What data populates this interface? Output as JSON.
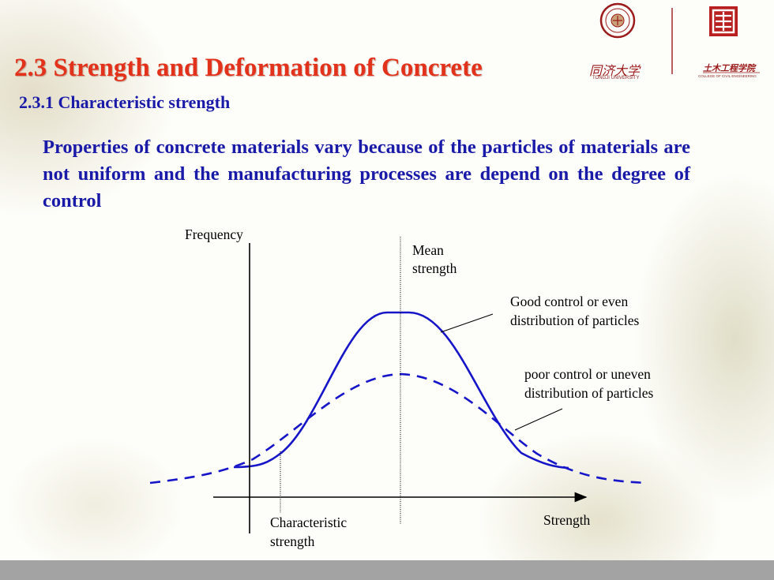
{
  "slide": {
    "title": "2.3 Strength and Deformation of Concrete",
    "subtitle": "2.3.1 Characteristic  strength",
    "intro": "Properties of concrete materials vary because of the particles of materials are not uniform and the manufacturing processes are depend on the degree of control"
  },
  "logos": {
    "university_name": "同济大学",
    "university_caption": "TONGJI UNIVERSITY",
    "college_name": "土木工程学院",
    "college_caption": "COLLEGE OF CIVIL ENGINEERING"
  },
  "diagram": {
    "y_axis_label": "Frequency",
    "x_axis_label": "Strength",
    "mean_label_line1": "Mean",
    "mean_label_line2": "strength",
    "characteristic_label_line1": "Characteristic",
    "characteristic_label_line2": "strength",
    "good_label_line1": "Good control or even",
    "good_label_line2": "distribution of particles",
    "poor_label_line1": "poor control or uneven",
    "poor_label_line2": "distribution of particles",
    "curve_color": "#1616c8",
    "title_color": "#e3321b",
    "text_color": "#1a1aa8"
  }
}
